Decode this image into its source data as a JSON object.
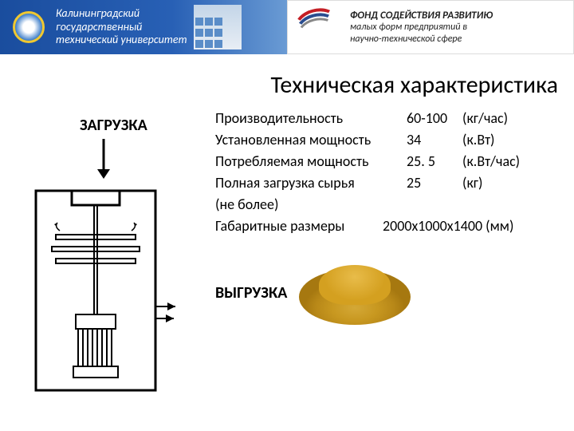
{
  "header": {
    "university": "Калининградский\nгосударственный\nтехнический университет",
    "fund_title": "ФОНД СОДЕЙСТВИЯ РАЗВИТИЮ",
    "fund_subtitle": "малых форм предприятий в\nнаучно-технической сфере"
  },
  "title": "Техническая характеристика",
  "labels": {
    "zagruzka": "ЗАГРУЗКА",
    "vygruzka": "ВЫГРУЗКА"
  },
  "specs": [
    {
      "label": "Производительность",
      "value": "60-100",
      "unit": "(кг/час)"
    },
    {
      "label": "Установленная мощность",
      "value": "34",
      "unit": "(к.Вт)"
    },
    {
      "label": "Потребляемая мощность",
      "value": "25. 5",
      "unit": "(к.Вт/час)"
    },
    {
      "label": "Полная загрузка сырья",
      "value": " 25",
      "unit": "(кг)"
    },
    {
      "label": " (не более)",
      "value": "",
      "unit": ""
    },
    {
      "label": "Габаритные размеры",
      "value": "",
      "unit": "2000x1000x1400 (мм)",
      "wide": true
    }
  ],
  "colors": {
    "header_blue": "#2860b5",
    "swoosh_red": "#c41e25",
    "swoosh_blue": "#2a4d8f",
    "powder": "#c89820"
  }
}
